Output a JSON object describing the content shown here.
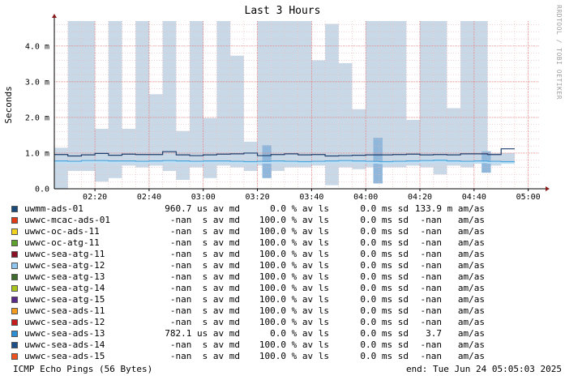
{
  "title": "Last 3 Hours",
  "watermark": "RRDTOOL / TOBI OETIKER",
  "chart_data": {
    "type": "area",
    "ylabel": "Seconds",
    "yticks": [
      "0.0",
      "1.0 m",
      "2.0 m",
      "3.0 m",
      "4.0 m"
    ],
    "ylim": [
      0,
      4.7
    ],
    "xticks": [
      "02:20",
      "02:40",
      "03:00",
      "03:20",
      "03:40",
      "04:00",
      "04:20",
      "04:40",
      "05:00"
    ],
    "xtick_minutes": [
      20,
      40,
      60,
      80,
      100,
      120,
      140,
      160,
      180
    ],
    "xlim_minutes": [
      5,
      184
    ],
    "grid": true,
    "bin_minutes": 5,
    "loss_ceiling": [
      1.15,
      4.7,
      4.7,
      1.68,
      4.7,
      1.68,
      4.7,
      2.65,
      4.7,
      1.62,
      4.7,
      1.98,
      4.7,
      3.73,
      1.32,
      4.7,
      4.7,
      4.7,
      4.7,
      3.6,
      4.62,
      3.52,
      2.23,
      4.7,
      4.7,
      4.7,
      1.93,
      4.7,
      4.7,
      2.26,
      4.7,
      4.7,
      1.0,
      1.0
    ],
    "loss_floor": [
      0.0,
      0.5,
      0.5,
      0.2,
      0.3,
      0.65,
      0.6,
      0.65,
      0.5,
      0.25,
      0.6,
      0.3,
      0.65,
      0.6,
      0.5,
      0.65,
      0.5,
      0.6,
      0.6,
      0.65,
      0.1,
      0.6,
      0.55,
      0.6,
      0.6,
      0.6,
      0.65,
      0.6,
      0.4,
      0.65,
      0.6,
      0.7,
      0.65,
      0.7
    ],
    "highlights": [
      {
        "center_minute": 83.5,
        "low": 0.3,
        "high": 1.22
      },
      {
        "center_minute": 124.5,
        "low": 0.15,
        "high": 1.43
      },
      {
        "center_minute": 164.5,
        "low": 0.45,
        "high": 1.05
      }
    ],
    "series": [
      {
        "name": "uwmm-ads-01",
        "color": "#1f3f6e",
        "values": [
          0.96,
          0.92,
          0.95,
          0.99,
          0.94,
          0.97,
          0.96,
          0.96,
          1.04,
          0.95,
          0.93,
          0.95,
          0.97,
          0.98,
          1.0,
          0.93,
          0.96,
          0.98,
          0.95,
          0.96,
          0.92,
          0.93,
          0.94,
          0.95,
          0.95,
          0.96,
          0.97,
          0.95,
          0.96,
          0.95,
          0.98,
          0.98,
          0.96,
          1.12
        ]
      },
      {
        "name": "uwwc-sea-ads-13",
        "color": "#4aa8e0",
        "values": [
          0.78,
          0.77,
          0.79,
          0.79,
          0.78,
          0.78,
          0.77,
          0.78,
          0.79,
          0.78,
          0.77,
          0.78,
          0.78,
          0.77,
          0.76,
          0.77,
          0.78,
          0.77,
          0.76,
          0.77,
          0.78,
          0.79,
          0.78,
          0.77,
          0.76,
          0.77,
          0.78,
          0.79,
          0.8,
          0.78,
          0.77,
          0.78,
          0.77,
          0.76
        ]
      }
    ]
  },
  "legend": [
    {
      "color": "#1a4a7a",
      "name": "uwmm-ads-01",
      "md": "960.7 us av md",
      "ls": "0.0 % av ls",
      "sd": "0.0 ms sd",
      "am": "133.9 m am/as"
    },
    {
      "color": "#e23a17",
      "name": "uwwc-mcac-ads-01",
      "md": "-nan  s av md",
      "ls": "100.0 % av ls",
      "sd": "0.0 ms sd",
      "am": "-nan   am/as"
    },
    {
      "color": "#f2d21b",
      "name": "uwwc-oc-ads-11",
      "md": "-nan  s av md",
      "ls": "100.0 % av ls",
      "sd": "0.0 ms sd",
      "am": "-nan   am/as"
    },
    {
      "color": "#5ea12c",
      "name": "uwwc-oc-atg-11",
      "md": "-nan  s av md",
      "ls": "100.0 % av ls",
      "sd": "0.0 ms sd",
      "am": "-nan   am/as"
    },
    {
      "color": "#8b0f26",
      "name": "uwwc-sea-atg-11",
      "md": "-nan  s av md",
      "ls": "100.0 % av ls",
      "sd": "0.0 ms sd",
      "am": "-nan   am/as"
    },
    {
      "color": "#8ec8f0",
      "name": "uwwc-sea-atg-12",
      "md": "-nan  s av md",
      "ls": "100.0 % av ls",
      "sd": "0.0 ms sd",
      "am": "-nan   am/as"
    },
    {
      "color": "#3d6b2b",
      "name": "uwwc-sea-atg-13",
      "md": "-nan  s av md",
      "ls": "100.0 % av ls",
      "sd": "0.0 ms sd",
      "am": "-nan   am/as"
    },
    {
      "color": "#a9c41a",
      "name": "uwwc-sea-atg-14",
      "md": "-nan  s av md",
      "ls": "100.0 % av ls",
      "sd": "0.0 ms sd",
      "am": "-nan   am/as"
    },
    {
      "color": "#5a2a8a",
      "name": "uwwc-sea-atg-15",
      "md": "-nan  s av md",
      "ls": "100.0 % av ls",
      "sd": "0.0 ms sd",
      "am": "-nan   am/as"
    },
    {
      "color": "#f59a1b",
      "name": "uwwc-sea-ads-11",
      "md": "-nan  s av md",
      "ls": "100.0 % av ls",
      "sd": "0.0 ms sd",
      "am": "-nan   am/as"
    },
    {
      "color": "#c71a1a",
      "name": "uwwc-sea-ads-12",
      "md": "-nan  s av md",
      "ls": "100.0 % av ls",
      "sd": "0.0 ms sd",
      "am": "-nan   am/as"
    },
    {
      "color": "#2c8fd6",
      "name": "uwwc-sea-ads-13",
      "md": "782.1 us av md",
      "ls": "0.0 % av ls",
      "sd": "0.0 ms sd",
      "am": "3.7   am/as"
    },
    {
      "color": "#1b4f8a",
      "name": "uwwc-sea-ads-14",
      "md": "-nan  s av md",
      "ls": "100.0 % av ls",
      "sd": "0.0 ms sd",
      "am": "-nan   am/as"
    },
    {
      "color": "#f0521d",
      "name": "uwwc-sea-ads-15",
      "md": "-nan  s av md",
      "ls": "100.0 % av ls",
      "sd": "0.0 ms sd",
      "am": "-nan   am/as"
    }
  ],
  "footer": {
    "left": "ICMP Echo Pings (56 Bytes)",
    "right": "end: Tue Jun 24 05:05:03 2025"
  }
}
